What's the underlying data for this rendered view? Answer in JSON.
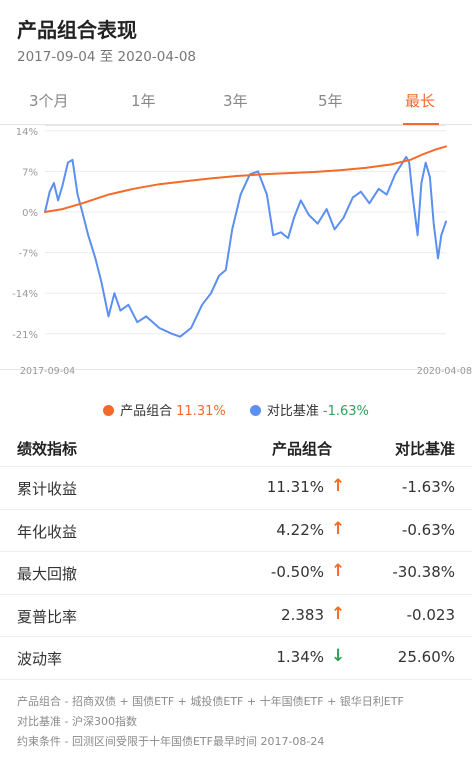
{
  "header": {
    "title": "产品组合表现",
    "date_range": "2017-09-04 至 2020-04-08"
  },
  "tabs": [
    {
      "label": "3个月",
      "active": false
    },
    {
      "label": "1年",
      "active": false
    },
    {
      "label": "3年",
      "active": false
    },
    {
      "label": "5年",
      "active": false
    },
    {
      "label": "最长",
      "active": true
    }
  ],
  "colors": {
    "portfolio": "#f46a2a",
    "benchmark": "#5b8ff0",
    "up": "#f46a2a",
    "down": "#2ba35c",
    "accent": "#f46a2a"
  },
  "chart_data": {
    "type": "line",
    "y_ticks": [
      "14%",
      "7%",
      "0%",
      "-7%",
      "-14%",
      "-21%"
    ],
    "y_tick_values": [
      14,
      7,
      0,
      -7,
      -14,
      -21
    ],
    "ylim": [
      -25,
      15
    ],
    "x_tick_labels": [
      "2017-09-04",
      "2020-04-08"
    ],
    "x_range": [
      "2017-09-04",
      "2020-04-08"
    ],
    "series": [
      {
        "name": "产品组合",
        "color": "#f46a2a",
        "points": [
          [
            "2017-09-04",
            0
          ],
          [
            "2017-10-15",
            0.5
          ],
          [
            "2017-12-01",
            1.5
          ],
          [
            "2018-02-01",
            3.0
          ],
          [
            "2018-04-01",
            4.0
          ],
          [
            "2018-06-01",
            4.8
          ],
          [
            "2018-08-01",
            5.3
          ],
          [
            "2018-10-01",
            5.8
          ],
          [
            "2018-12-01",
            6.2
          ],
          [
            "2019-02-01",
            6.5
          ],
          [
            "2019-04-01",
            6.7
          ],
          [
            "2019-06-01",
            6.9
          ],
          [
            "2019-08-01",
            7.2
          ],
          [
            "2019-10-01",
            7.6
          ],
          [
            "2019-12-01",
            8.2
          ],
          [
            "2020-01-15",
            9.0
          ],
          [
            "2020-02-15",
            10.0
          ],
          [
            "2020-03-15",
            10.8
          ],
          [
            "2020-04-08",
            11.31
          ]
        ]
      },
      {
        "name": "对比基准",
        "color": "#5b8ff0",
        "points": [
          [
            "2017-09-04",
            0
          ],
          [
            "2017-09-15",
            3.5
          ],
          [
            "2017-09-25",
            5.0
          ],
          [
            "2017-10-05",
            2.0
          ],
          [
            "2017-10-15",
            4.5
          ],
          [
            "2017-10-28",
            8.5
          ],
          [
            "2017-11-08",
            9.0
          ],
          [
            "2017-11-20",
            3.0
          ],
          [
            "2017-12-01",
            0
          ],
          [
            "2017-12-15",
            -4.0
          ],
          [
            "2018-01-01",
            -8.0
          ],
          [
            "2018-01-15",
            -12.0
          ],
          [
            "2018-02-01",
            -18.0
          ],
          [
            "2018-02-15",
            -14.0
          ],
          [
            "2018-03-01",
            -17.0
          ],
          [
            "2018-03-20",
            -16.0
          ],
          [
            "2018-04-10",
            -19.0
          ],
          [
            "2018-05-01",
            -18.0
          ],
          [
            "2018-06-01",
            -20.0
          ],
          [
            "2018-07-01",
            -21.0
          ],
          [
            "2018-07-20",
            -21.5
          ],
          [
            "2018-08-15",
            -20.0
          ],
          [
            "2018-09-10",
            -16.0
          ],
          [
            "2018-10-01",
            -14.0
          ],
          [
            "2018-10-20",
            -11.0
          ],
          [
            "2018-11-05",
            -10.0
          ],
          [
            "2018-11-20",
            -3.0
          ],
          [
            "2018-12-10",
            3.0
          ],
          [
            "2019-01-01",
            6.5
          ],
          [
            "2019-01-20",
            7.0
          ],
          [
            "2019-02-10",
            3.0
          ],
          [
            "2019-02-25",
            -4.0
          ],
          [
            "2019-03-15",
            -3.5
          ],
          [
            "2019-04-01",
            -4.5
          ],
          [
            "2019-04-15",
            -1.0
          ],
          [
            "2019-05-01",
            2.0
          ],
          [
            "2019-05-20",
            -0.5
          ],
          [
            "2019-06-10",
            -2.0
          ],
          [
            "2019-07-01",
            0.5
          ],
          [
            "2019-07-20",
            -3.0
          ],
          [
            "2019-08-10",
            -1.0
          ],
          [
            "2019-09-01",
            2.5
          ],
          [
            "2019-09-20",
            3.5
          ],
          [
            "2019-10-10",
            1.5
          ],
          [
            "2019-11-01",
            4.0
          ],
          [
            "2019-11-20",
            3.0
          ],
          [
            "2019-12-10",
            6.5
          ],
          [
            "2020-01-05",
            9.5
          ],
          [
            "2020-01-12",
            8.5
          ],
          [
            "2020-01-20",
            3.0
          ],
          [
            "2020-02-01",
            -4.0
          ],
          [
            "2020-02-10",
            5.0
          ],
          [
            "2020-02-20",
            8.5
          ],
          [
            "2020-03-01",
            6.0
          ],
          [
            "2020-03-10",
            -2.0
          ],
          [
            "2020-03-20",
            -8.0
          ],
          [
            "2020-03-28",
            -4.0
          ],
          [
            "2020-04-08",
            -1.63
          ]
        ]
      }
    ],
    "legend": [
      {
        "name": "产品组合",
        "value": "11.31%"
      },
      {
        "name": "对比基准",
        "value": "-1.63%"
      }
    ]
  },
  "metrics": {
    "header": [
      "绩效指标",
      "产品组合",
      "对比基准"
    ],
    "rows": [
      {
        "label": "累计收益",
        "portfolio": "11.31%",
        "arrow": "↑",
        "direction": "up",
        "benchmark": "-1.63%"
      },
      {
        "label": "年化收益",
        "portfolio": "4.22%",
        "arrow": "↑",
        "direction": "up",
        "benchmark": "-0.63%"
      },
      {
        "label": "最大回撤",
        "portfolio": "-0.50%",
        "arrow": "↑",
        "direction": "up",
        "benchmark": "-30.38%"
      },
      {
        "label": "夏普比率",
        "portfolio": "2.383",
        "arrow": "↑",
        "direction": "up",
        "benchmark": "-0.023"
      },
      {
        "label": "波动率",
        "portfolio": "1.34%",
        "arrow": "↓",
        "direction": "down",
        "benchmark": "25.60%"
      }
    ]
  },
  "footnotes": {
    "portfolio": "产品组合 - 招商双债 + 国债ETF + 城投债ETF + 十年国债ETF + 银华日利ETF",
    "benchmark": "对比基准 - 沪深300指数",
    "constraint": "约束条件 - 回测区间受限于十年国债ETF最早时间 2017-08-24"
  }
}
